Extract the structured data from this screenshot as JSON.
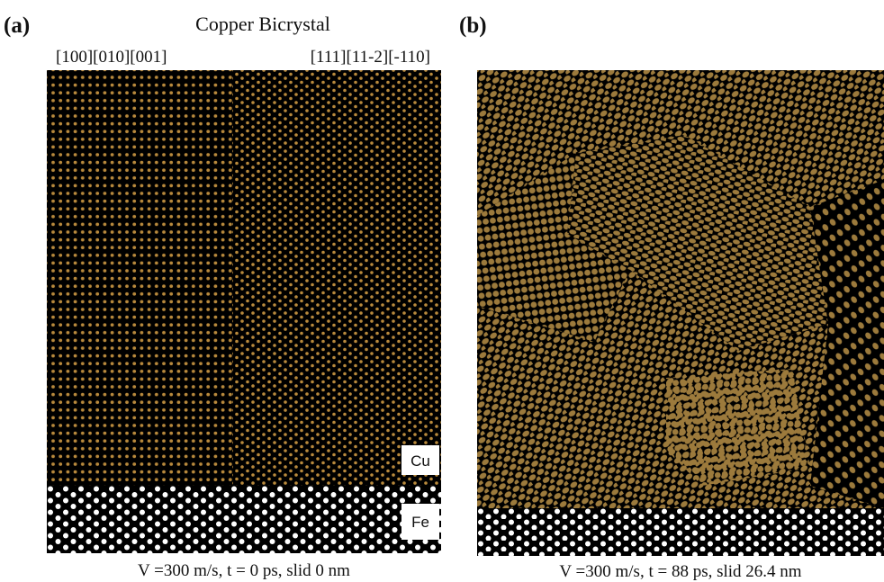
{
  "panels": [
    {
      "label": "(a)",
      "title": "Copper Bicrystal",
      "orientations": [
        "[100][010][001]",
        "[111][11-2][-110]"
      ],
      "materials": [
        "Cu",
        "Fe"
      ],
      "caption": "V =300 m/s, t = 0 ps, slid 0 nm"
    },
    {
      "label": "(b)",
      "caption": "V =300 m/s, t = 88 ps, slid 26.4 nm"
    }
  ]
}
